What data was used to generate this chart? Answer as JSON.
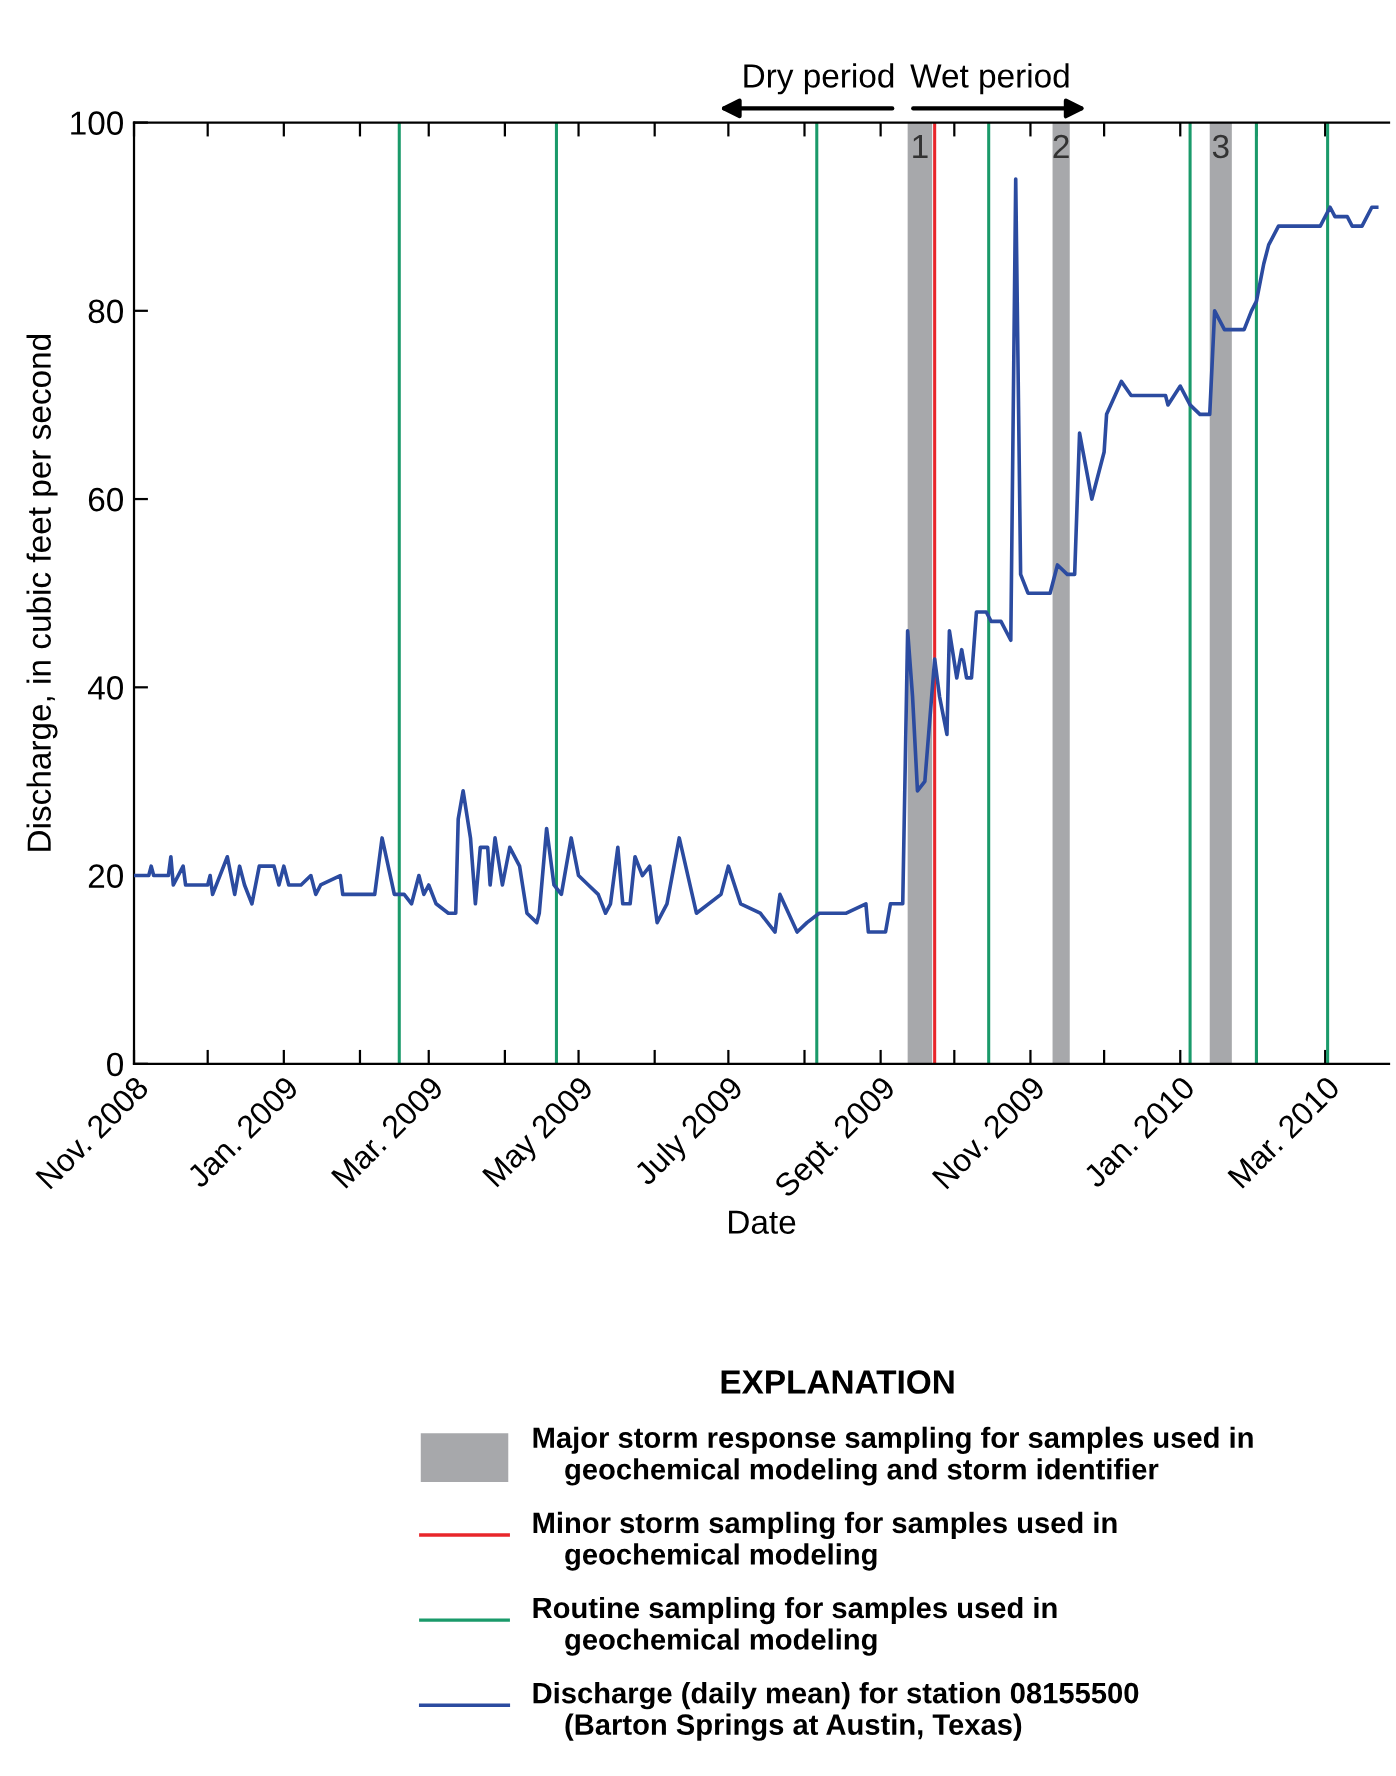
{
  "chart_data": {
    "type": "line",
    "xlabel": "Date",
    "ylabel": "Discharge, in cubic feet per second",
    "legend_title": "EXPLANATION",
    "legend": "bottom",
    "grid": false,
    "annotations": [
      "Dry period",
      "Wet period",
      "Major storm response sampling for samples used in\n    geochemical modeling and storm identifier",
      "Minor storm sampling for samples used in\n    geochemical modeling",
      "Routine sampling for samples used in\n    geochemical modeling"
    ],
    "xlim": [
      "2008-11-01",
      "2010-03-27"
    ],
    "xticks": [
      {
        "value": "2008-11-01",
        "label": "Nov. 2008"
      },
      {
        "value": "2008-12-01",
        "label": null
      },
      {
        "value": "2009-01-01",
        "label": "Jan. 2009"
      },
      {
        "value": "2009-02-01",
        "label": null
      },
      {
        "value": "2009-03-01",
        "label": "Mar. 2009"
      },
      {
        "value": "2009-04-01",
        "label": null
      },
      {
        "value": "2009-05-01",
        "label": "May 2009"
      },
      {
        "value": "2009-06-01",
        "label": null
      },
      {
        "value": "2009-07-01",
        "label": "July 2009"
      },
      {
        "value": "2009-08-01",
        "label": null
      },
      {
        "value": "2009-09-01",
        "label": "Sept. 2009"
      },
      {
        "value": "2009-10-01",
        "label": null
      },
      {
        "value": "2009-11-01",
        "label": "Nov. 2009"
      },
      {
        "value": "2009-12-01",
        "label": null
      },
      {
        "value": "2010-01-01",
        "label": "Jan. 2010"
      },
      {
        "value": "2010-02-01",
        "label": null
      },
      {
        "value": "2010-03-01",
        "label": "Mar. 2010"
      }
    ],
    "ylim": [
      0,
      100
    ],
    "yticks": [
      0,
      20,
      40,
      60,
      80,
      100
    ],
    "bands": [
      {
        "axis": "x",
        "from": "2009-09-12",
        "to": "2009-09-22",
        "label": "1",
        "color": "#a7a8ab"
      },
      {
        "axis": "x",
        "from": "2009-11-10",
        "to": "2009-11-17",
        "label": "2",
        "color": "#a7a8ab"
      },
      {
        "axis": "x",
        "from": "2010-01-13",
        "to": "2010-01-22",
        "label": "3",
        "color": "#a7a8ab"
      }
    ],
    "ref_lines": [
      {
        "axis": "x",
        "value": "2009-09-23",
        "color": "#e8262b"
      },
      {
        "axis": "x",
        "value": "2009-02-17",
        "color": "#1a9a6a"
      },
      {
        "axis": "x",
        "value": "2009-04-22",
        "color": "#1a9a6a"
      },
      {
        "axis": "x",
        "value": "2009-08-06",
        "color": "#1a9a6a"
      },
      {
        "axis": "x",
        "value": "2009-10-15",
        "color": "#1a9a6a"
      },
      {
        "axis": "x",
        "value": "2010-01-05",
        "color": "#1a9a6a"
      },
      {
        "axis": "x",
        "value": "2010-02-01",
        "color": "#1a9a6a"
      },
      {
        "axis": "x",
        "value": "2010-03-02",
        "color": "#1a9a6a"
      }
    ],
    "series": [
      {
        "name": "Discharge (daily mean) for station 08155500\n    (Barton Springs at Austin, Texas)",
        "color": "#2b4ba0",
        "line_style": "solid",
        "x": [
          "2008-11-01",
          "2008-11-07",
          "2008-11-08",
          "2008-11-09",
          "2008-11-15",
          "2008-11-16",
          "2008-11-17",
          "2008-11-21",
          "2008-11-22",
          "2008-12-01",
          "2008-12-02",
          "2008-12-03",
          "2008-12-09",
          "2008-12-12",
          "2008-12-14",
          "2008-12-16",
          "2008-12-19",
          "2008-12-22",
          "2008-12-28",
          "2008-12-30",
          "2009-01-01",
          "2009-01-03",
          "2009-01-08",
          "2009-01-12",
          "2009-01-14",
          "2009-01-16",
          "2009-01-24",
          "2009-01-25",
          "2009-01-29",
          "2009-02-07",
          "2009-02-10",
          "2009-02-15",
          "2009-02-19",
          "2009-02-22",
          "2009-02-25",
          "2009-02-27",
          "2009-03-01",
          "2009-03-04",
          "2009-03-09",
          "2009-03-12",
          "2009-03-13",
          "2009-03-15",
          "2009-03-18",
          "2009-03-20",
          "2009-03-22",
          "2009-03-25",
          "2009-03-26",
          "2009-03-28",
          "2009-03-31",
          "2009-04-03",
          "2009-04-07",
          "2009-04-10",
          "2009-04-14",
          "2009-04-15",
          "2009-04-18",
          "2009-04-21",
          "2009-04-24",
          "2009-04-28",
          "2009-05-01",
          "2009-05-05",
          "2009-05-09",
          "2009-05-12",
          "2009-05-14",
          "2009-05-17",
          "2009-05-19",
          "2009-05-22",
          "2009-05-24",
          "2009-05-27",
          "2009-05-30",
          "2009-06-02",
          "2009-06-06",
          "2009-06-11",
          "2009-06-18",
          "2009-06-28",
          "2009-07-01",
          "2009-07-06",
          "2009-07-14",
          "2009-07-20",
          "2009-07-22",
          "2009-07-29",
          "2009-08-02",
          "2009-08-07",
          "2009-08-18",
          "2009-08-26",
          "2009-08-27",
          "2009-09-03",
          "2009-09-05",
          "2009-09-10",
          "2009-09-12",
          "2009-09-14",
          "2009-09-16",
          "2009-09-19",
          "2009-09-23",
          "2009-09-25",
          "2009-09-28",
          "2009-09-29",
          "2009-10-02",
          "2009-10-04",
          "2009-10-06",
          "2009-10-08",
          "2009-10-10",
          "2009-10-14",
          "2009-10-16",
          "2009-10-20",
          "2009-10-24",
          "2009-10-26",
          "2009-10-28",
          "2009-10-31",
          "2009-11-09",
          "2009-11-12",
          "2009-11-16",
          "2009-11-19",
          "2009-11-21",
          "2009-11-26",
          "2009-12-01",
          "2009-12-02",
          "2009-12-08",
          "2009-12-12",
          "2009-12-16",
          "2009-12-26",
          "2009-12-27",
          "2010-01-01",
          "2010-01-05",
          "2010-01-09",
          "2010-01-13",
          "2010-01-15",
          "2010-01-19",
          "2010-01-27",
          "2010-01-30",
          "2010-02-01",
          "2010-02-04",
          "2010-02-06",
          "2010-02-10",
          "2010-02-27",
          "2010-03-03",
          "2010-03-05",
          "2010-03-10",
          "2010-03-12",
          "2010-03-16",
          "2010-03-20",
          "2010-03-22"
        ],
        "values": [
          20,
          20,
          21,
          20,
          20,
          22,
          19,
          21,
          19,
          19,
          20,
          18,
          22,
          18,
          21,
          19,
          17,
          21,
          21,
          19,
          21,
          19,
          19,
          20,
          18,
          19,
          20,
          18,
          18,
          18,
          24,
          18,
          18,
          17,
          20,
          18,
          19,
          17,
          16,
          16,
          26,
          29,
          24,
          17,
          23,
          23,
          19,
          24,
          19,
          23,
          21,
          16,
          15,
          16,
          25,
          19,
          18,
          24,
          20,
          19,
          18,
          16,
          17,
          23,
          17,
          17,
          22,
          20,
          21,
          15,
          17,
          24,
          16,
          18,
          21,
          17,
          16,
          14,
          18,
          14,
          15,
          16,
          16,
          17,
          14,
          14,
          17,
          17,
          46,
          39,
          29,
          30,
          43,
          39,
          35,
          46,
          41,
          44,
          41,
          41,
          48,
          48,
          47,
          47,
          45,
          94,
          52,
          50,
          50,
          53,
          52,
          52,
          67,
          60,
          65,
          69,
          72.5,
          71,
          71,
          71,
          70,
          72,
          70,
          69,
          69,
          80,
          78,
          78,
          80,
          81,
          85,
          87,
          89,
          89,
          91,
          90,
          90,
          89,
          89,
          91,
          91
        ]
      }
    ]
  }
}
